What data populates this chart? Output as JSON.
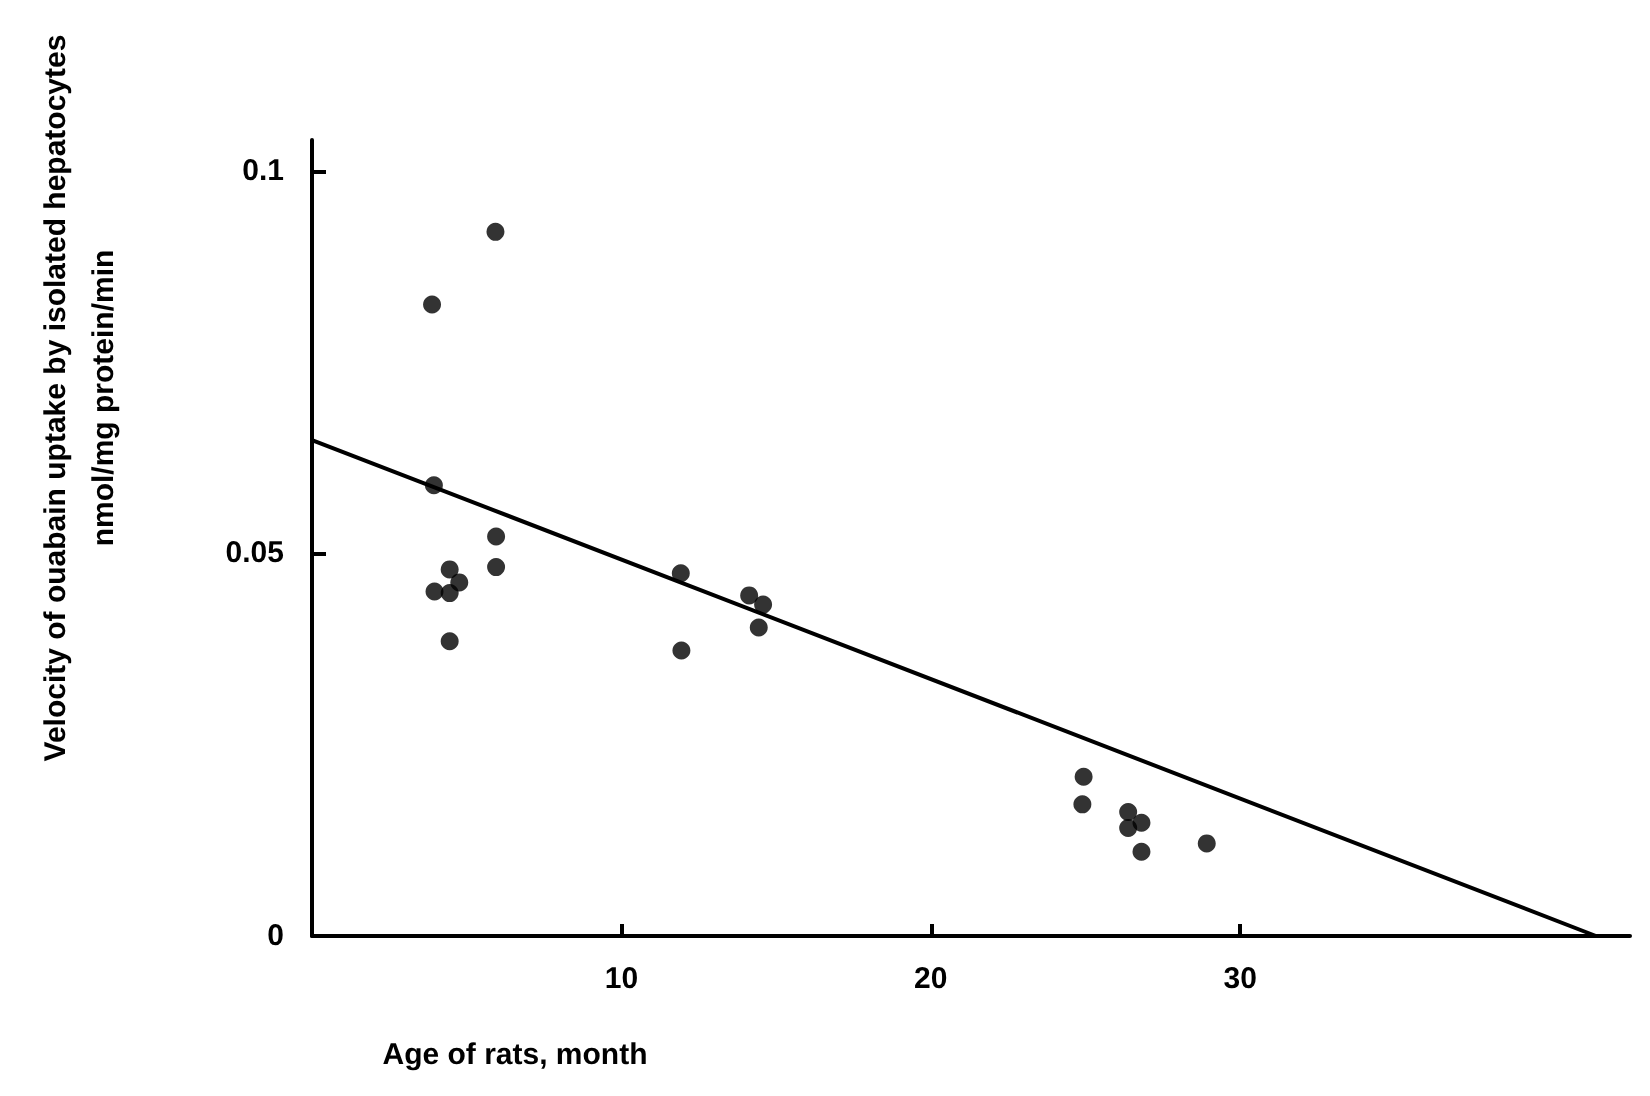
{
  "chart_data": {
    "type": "scatter",
    "xlabel": "Age of rats, month",
    "ylabel": "Velocity of ouabain uptake by isolated hepatocytes\nnmol/mg protein/min",
    "xlim": [
      0,
      42.6
    ],
    "xticks": [
      10,
      20,
      30
    ],
    "ylim": [
      0,
      0.104
    ],
    "yticks": [
      0,
      0.05,
      0.1
    ],
    "marker": "circle",
    "series": [
      {
        "type": "scatter",
        "color": "#000000",
        "x": [
          3.88,
          5.93,
          3.94,
          5.95,
          5.95,
          4.45,
          4.76,
          3.96,
          4.45,
          4.45,
          11.92,
          11.94,
          14.13,
          14.58,
          14.44,
          24.94,
          24.9,
          26.38,
          26.81,
          26.38,
          26.81,
          28.92
        ],
        "values": [
          0.0825,
          0.092,
          0.0589,
          0.0522,
          0.0482,
          0.0479,
          0.0462,
          0.045,
          0.0448,
          0.0385,
          0.0474,
          0.0373,
          0.0445,
          0.0433,
          0.0403,
          0.0208,
          0.0172,
          0.0162,
          0.0148,
          0.0141,
          0.011,
          0.0121
        ]
      },
      {
        "type": "line",
        "color": "#000000",
        "marker": "none",
        "line_style": "solid",
        "x": [
          0,
          41.5
        ],
        "values": [
          0.0648,
          0
        ]
      }
    ]
  }
}
